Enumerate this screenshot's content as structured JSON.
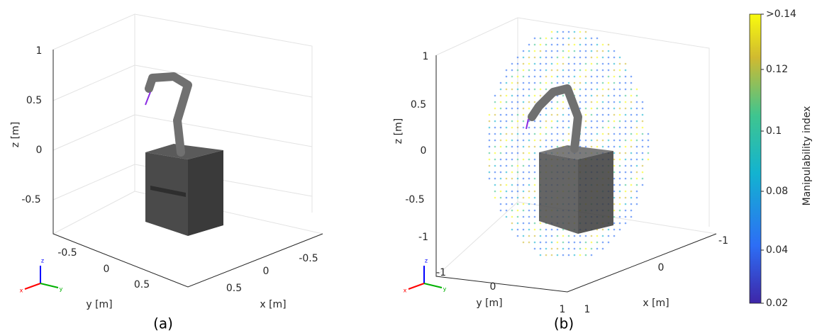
{
  "panels": [
    {
      "caption": "(a)",
      "z_label": "z [m]",
      "y_label": "y [m]",
      "x_label": "x [m]",
      "z_ticks": [
        "1",
        "0.5",
        "0",
        "-0.5"
      ],
      "y_ticks": [
        "-0.5",
        "0",
        "0.5"
      ],
      "x_ticks": [
        "-0.5",
        "0",
        "0.5"
      ],
      "triad": [
        "x",
        "y",
        "z"
      ]
    },
    {
      "caption": "(b)",
      "z_label": "z [m]",
      "y_label": "y [m]",
      "x_label": "x [m]",
      "z_ticks": [
        "1",
        "0.5",
        "0",
        "-0.5",
        "-1"
      ],
      "y_ticks": [
        "-1",
        "0",
        "1"
      ],
      "x_ticks": [
        "-1",
        "0",
        "1"
      ],
      "triad": [
        "x",
        "y",
        "z"
      ]
    }
  ],
  "colorbar": {
    "label": "Manipulability index",
    "ticks": [
      ">0.14",
      "0.12",
      "0.1",
      "0.08",
      "0.04",
      "0.02"
    ]
  }
}
